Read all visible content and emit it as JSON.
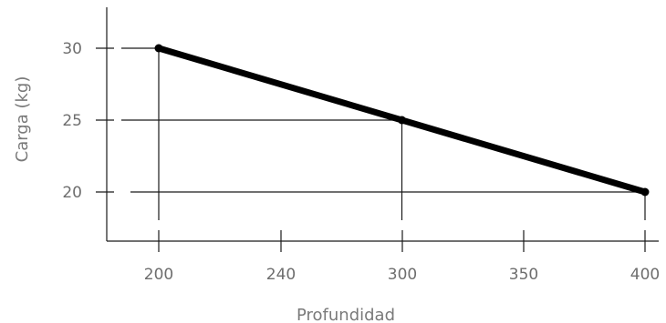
{
  "chart_data": {
    "type": "line",
    "xlabel": "Profundidad",
    "ylabel": "Carga (kg)",
    "x_ticks": [
      "200",
      "240",
      "300",
      "350",
      "400"
    ],
    "y_ticks": [
      "20",
      "25",
      "30"
    ],
    "series": [
      {
        "x": [
          200,
          300,
          400
        ],
        "y": [
          30,
          25,
          20
        ]
      }
    ],
    "line_color": "#000000",
    "grid_color": "#1a1a1a",
    "text_color": "#6e6e6e"
  }
}
